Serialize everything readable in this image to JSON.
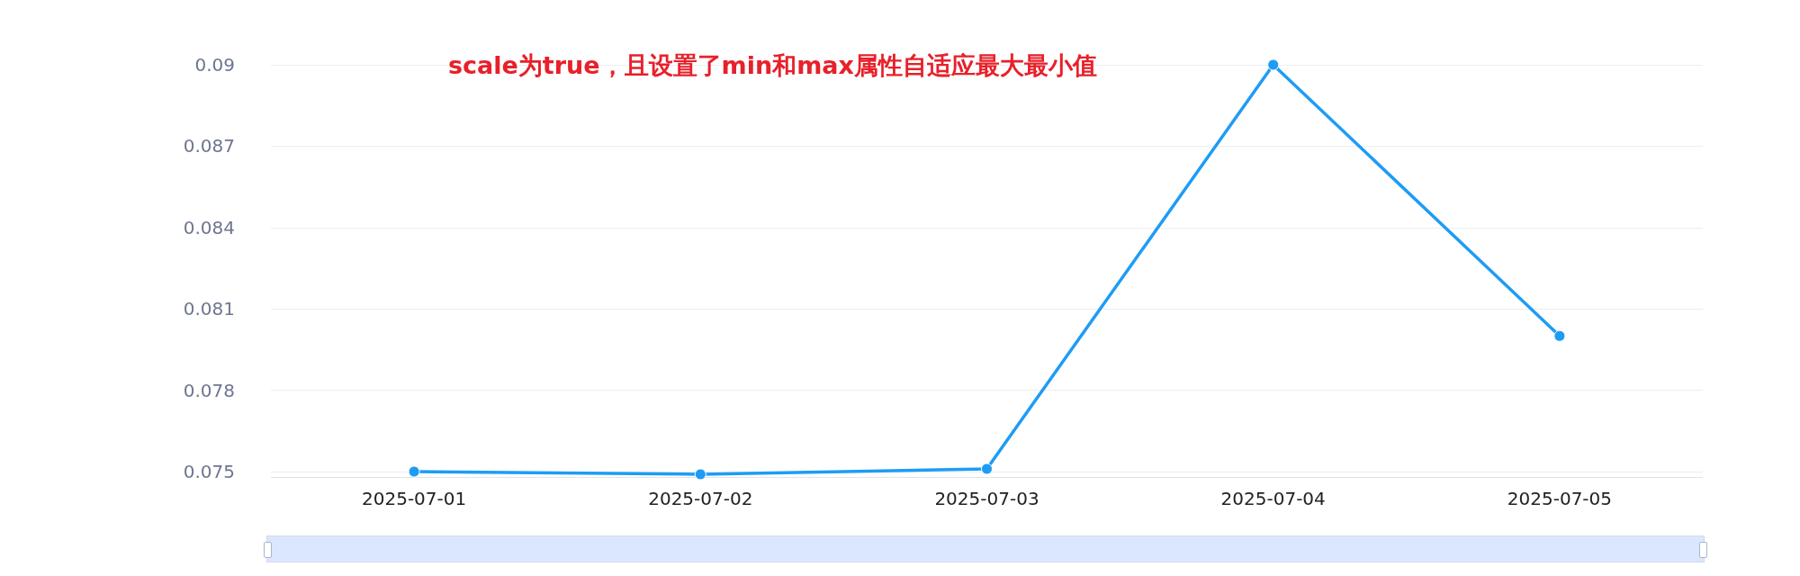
{
  "chart_data": {
    "type": "line",
    "title": "scale为true，且设置了min和max属性自适应最大最小值",
    "categories": [
      "2025-07-01",
      "2025-07-02",
      "2025-07-03",
      "2025-07-04",
      "2025-07-05"
    ],
    "series": [
      {
        "color": "#1e9cf5",
        "values": [
          0.075,
          0.0749,
          0.0751,
          0.09,
          0.08
        ]
      }
    ],
    "ylim": [
      0.0748,
      0.09
    ],
    "yticks": [
      0.075,
      0.078,
      0.081,
      0.084,
      0.087,
      0.09
    ],
    "grid": "y",
    "marker": "circle",
    "line_style": "solid"
  }
}
